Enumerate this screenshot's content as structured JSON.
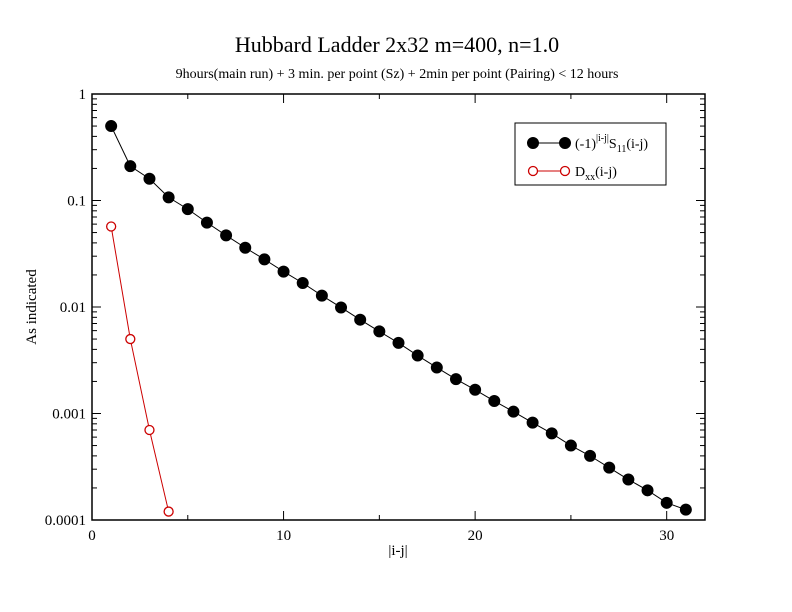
{
  "chart_data": {
    "type": "line",
    "title": "Hubbard Ladder 2x32 m=400, n=1.0",
    "subtitle": "9hours(main run) + 3 min. per point (Sz) + 2min per point (Pairing) < 12 hours",
    "xlabel": "|i-j|",
    "ylabel": "As indicated",
    "xlim": [
      0,
      32
    ],
    "ylim": [
      0.0001,
      1
    ],
    "yscale": "log",
    "x_ticks": [
      0,
      10,
      20,
      30
    ],
    "x_tick_labels": [
      "0",
      "10",
      "20",
      "30"
    ],
    "y_ticks": [
      1,
      0.1,
      0.01,
      0.001,
      0.0001
    ],
    "y_tick_labels": [
      "1",
      "0.1",
      "0.01",
      "0.001",
      "0.0001"
    ],
    "grid": false,
    "legend_position": "top-right",
    "series": [
      {
        "name": "(-1)^|i-j| S11(i-j)",
        "legend": {
          "base": "(-1)",
          "sup": "|i-j|",
          "main": "S",
          "sub": "11",
          "tail": "(i-j)"
        },
        "color": "#000000",
        "marker": "filled-circle",
        "x": [
          1,
          2,
          3,
          4,
          5,
          6,
          7,
          8,
          9,
          10,
          11,
          12,
          13,
          14,
          15,
          16,
          17,
          18,
          19,
          20,
          21,
          22,
          23,
          24,
          25,
          26,
          27,
          28,
          29,
          30,
          31
        ],
        "values": [
          0.5,
          0.21,
          0.16,
          0.107,
          0.083,
          0.062,
          0.047,
          0.036,
          0.028,
          0.0215,
          0.0168,
          0.0128,
          0.0099,
          0.0076,
          0.0059,
          0.0046,
          0.0035,
          0.0027,
          0.0021,
          0.00167,
          0.00131,
          0.00104,
          0.00082,
          0.00065,
          0.0005,
          0.0004,
          0.00031,
          0.00024,
          0.00019,
          0.000145,
          0.000125
        ]
      },
      {
        "name": "Dxx(i-j)",
        "legend": {
          "main": "D",
          "sub": "xx",
          "tail": "(i-j)"
        },
        "color": "#cc0000",
        "marker": "open-circle",
        "x": [
          1,
          2,
          3,
          4
        ],
        "values": [
          0.057,
          0.005,
          0.0007,
          0.00012
        ]
      }
    ]
  }
}
